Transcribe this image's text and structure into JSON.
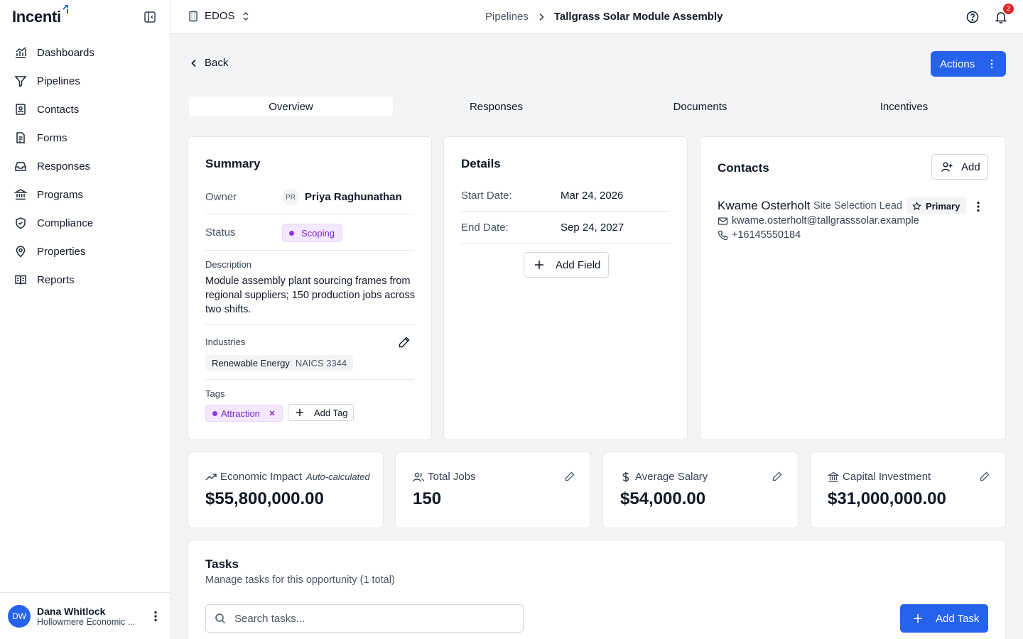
{
  "app": {
    "logo": "Incenti"
  },
  "sidebar": {
    "items": [
      {
        "label": "Dashboards",
        "icon": "chart-icon"
      },
      {
        "label": "Pipelines",
        "icon": "filter-icon"
      },
      {
        "label": "Contacts",
        "icon": "contact-book-icon"
      },
      {
        "label": "Forms",
        "icon": "document-icon"
      },
      {
        "label": "Responses",
        "icon": "inbox-icon"
      },
      {
        "label": "Programs",
        "icon": "bank-icon"
      },
      {
        "label": "Compliance",
        "icon": "shield-icon"
      },
      {
        "label": "Properties",
        "icon": "map-pin-icon"
      },
      {
        "label": "Reports",
        "icon": "book-icon"
      }
    ],
    "user": {
      "initials": "DW",
      "name": "Dana Whitlock",
      "org": "Hollowmere Economic ..."
    }
  },
  "header": {
    "org": "EDOS",
    "breadcrumb": {
      "parent": "Pipelines",
      "current": "Tallgrass Solar Module Assembly"
    },
    "notifications": "2"
  },
  "main": {
    "back_label": "Back",
    "actions_label": "Actions",
    "tabs": [
      "Overview",
      "Responses",
      "Documents",
      "Incentives"
    ],
    "summary": {
      "title": "Summary",
      "owner_label": "Owner",
      "owner_initials": "PR",
      "owner_name": "Priya Raghunathan",
      "status_label": "Status",
      "status_value": "Scoping",
      "description_label": "Description",
      "description": "Module assembly plant sourcing frames from regional suppliers; 150 production jobs across two shifts.",
      "industries_label": "Industries",
      "industry_name": "Renewable Energy",
      "industry_code": "NAICS 3344",
      "tags_label": "Tags",
      "tag": "Attraction",
      "add_tag_label": "Add Tag"
    },
    "details": {
      "title": "Details",
      "start_label": "Start Date:",
      "start_value": "Mar 24, 2026",
      "end_label": "End Date:",
      "end_value": "Sep 24, 2027",
      "add_field_label": "Add Field"
    },
    "contacts": {
      "title": "Contacts",
      "add_label": "Add",
      "name": "Kwame Osterholt",
      "role": "Site Selection Lead",
      "primary_label": "Primary",
      "email": "kwame.osterholt@tallgrasssolar.example",
      "phone": "+16145550184"
    },
    "metrics": [
      {
        "label": "Economic Impact",
        "note": "Auto-calculated",
        "value": "$55,800,000.00",
        "icon": "trend-up-icon"
      },
      {
        "label": "Total Jobs",
        "value": "150",
        "icon": "users-icon"
      },
      {
        "label": "Average Salary",
        "value": "$54,000.00",
        "icon": "dollar-icon"
      },
      {
        "label": "Capital Investment",
        "value": "$31,000,000.00",
        "icon": "bank-icon"
      }
    ],
    "tasks": {
      "title": "Tasks",
      "subtitle": "Manage tasks for this opportunity (1 total)",
      "search_placeholder": "Search tasks...",
      "add_label": "Add Task"
    }
  }
}
